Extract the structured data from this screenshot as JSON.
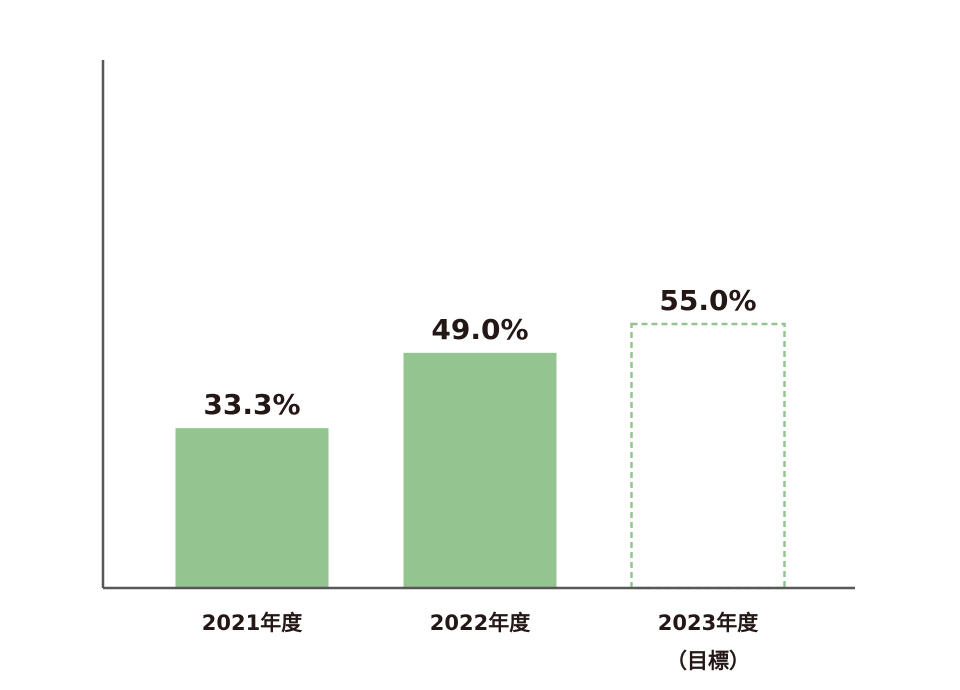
{
  "chart_data": {
    "type": "bar",
    "categories": [
      "2021年度",
      "2022年度",
      "2023年度\n（目標）"
    ],
    "values": [
      33.3,
      49.0,
      55.0
    ],
    "value_labels": [
      "33.3%",
      "49.0%",
      "55.0%"
    ],
    "dashed": [
      false,
      false,
      true
    ],
    "color": "#94c591",
    "ylim": [
      0,
      110
    ]
  }
}
